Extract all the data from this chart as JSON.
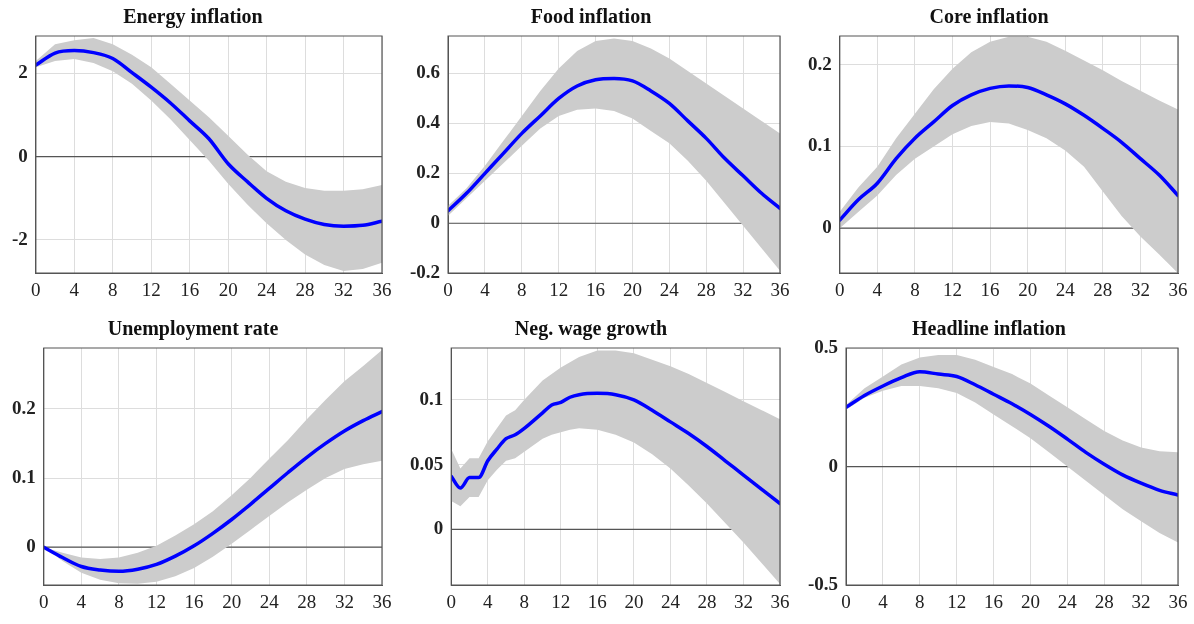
{
  "chart_data": [
    {
      "type": "line",
      "title": "Energy inflation",
      "x": [
        0,
        2,
        4,
        6,
        8,
        10,
        12,
        14,
        16,
        18,
        20,
        22,
        24,
        26,
        28,
        30,
        32,
        34,
        36
      ],
      "xlim": [
        0,
        36
      ],
      "xticks": [
        0,
        4,
        8,
        12,
        16,
        20,
        24,
        28,
        32,
        36
      ],
      "ylim": [
        -2.8,
        2.9
      ],
      "yticks": [
        -2,
        0,
        2
      ],
      "grid": true,
      "legend": false,
      "ref_lines": [
        {
          "axis": "y",
          "value": 0,
          "color": "#555555"
        }
      ],
      "series": [
        {
          "color": "#0000ff",
          "values": [
            2.2,
            2.49,
            2.55,
            2.5,
            2.36,
            2.02,
            1.67,
            1.29,
            0.86,
            0.43,
            -0.17,
            -0.6,
            -1.0,
            -1.3,
            -1.5,
            -1.63,
            -1.67,
            -1.65,
            -1.55
          ],
          "lower": [
            2.15,
            2.3,
            2.35,
            2.25,
            2.05,
            1.75,
            1.35,
            0.9,
            0.4,
            -0.1,
            -0.65,
            -1.15,
            -1.6,
            -2.0,
            -2.35,
            -2.6,
            -2.75,
            -2.7,
            -2.55
          ],
          "upper": [
            2.3,
            2.7,
            2.8,
            2.85,
            2.7,
            2.45,
            2.15,
            1.75,
            1.35,
            0.95,
            0.5,
            0.05,
            -0.35,
            -0.6,
            -0.75,
            -0.82,
            -0.82,
            -0.78,
            -0.68
          ]
        }
      ]
    },
    {
      "type": "line",
      "title": "Food inflation",
      "x": [
        0,
        2,
        4,
        6,
        8,
        10,
        12,
        14,
        16,
        18,
        20,
        22,
        24,
        26,
        28,
        30,
        32,
        34,
        36
      ],
      "xlim": [
        0,
        36
      ],
      "xticks": [
        0,
        4,
        8,
        12,
        16,
        20,
        24,
        28,
        32,
        36
      ],
      "ylim": [
        -0.2,
        0.75
      ],
      "yticks": [
        -0.2,
        0,
        0.2,
        0.4,
        0.6
      ],
      "grid": true,
      "legend": false,
      "ref_lines": [
        {
          "axis": "y",
          "value": 0,
          "color": "#555555"
        }
      ],
      "series": [
        {
          "color": "#0000ff",
          "values": [
            0.05,
            0.12,
            0.2,
            0.28,
            0.36,
            0.43,
            0.5,
            0.55,
            0.575,
            0.58,
            0.57,
            0.53,
            0.48,
            0.41,
            0.34,
            0.26,
            0.19,
            0.12,
            0.06
          ],
          "lower": [
            0.03,
            0.1,
            0.17,
            0.24,
            0.31,
            0.38,
            0.43,
            0.455,
            0.46,
            0.45,
            0.42,
            0.37,
            0.32,
            0.25,
            0.17,
            0.08,
            -0.01,
            -0.1,
            -0.19
          ],
          "upper": [
            0.07,
            0.14,
            0.23,
            0.33,
            0.43,
            0.53,
            0.62,
            0.69,
            0.73,
            0.74,
            0.73,
            0.7,
            0.66,
            0.61,
            0.56,
            0.51,
            0.46,
            0.41,
            0.36
          ]
        }
      ]
    },
    {
      "type": "line",
      "title": "Core inflation",
      "x": [
        0,
        2,
        4,
        6,
        8,
        10,
        12,
        14,
        16,
        18,
        20,
        22,
        24,
        26,
        28,
        30,
        32,
        34,
        36
      ],
      "xlim": [
        0,
        36
      ],
      "xticks": [
        0,
        4,
        8,
        12,
        16,
        20,
        24,
        28,
        32,
        36
      ],
      "ylim": [
        -0.055,
        0.235
      ],
      "yticks": [
        0,
        0.1,
        0.2
      ],
      "grid": true,
      "legend": false,
      "ref_lines": [
        {
          "axis": "y",
          "value": 0,
          "color": "#555555"
        }
      ],
      "series": [
        {
          "color": "#0000ff",
          "values": [
            0.01,
            0.035,
            0.055,
            0.085,
            0.11,
            0.13,
            0.15,
            0.163,
            0.171,
            0.174,
            0.172,
            0.163,
            0.152,
            0.138,
            0.122,
            0.105,
            0.085,
            0.065,
            0.04
          ],
          "lower": [
            0.0,
            0.02,
            0.04,
            0.065,
            0.085,
            0.1,
            0.115,
            0.125,
            0.13,
            0.128,
            0.12,
            0.11,
            0.095,
            0.075,
            0.045,
            0.015,
            -0.01,
            -0.032,
            -0.055
          ],
          "upper": [
            0.02,
            0.05,
            0.075,
            0.11,
            0.14,
            0.17,
            0.195,
            0.215,
            0.228,
            0.234,
            0.234,
            0.228,
            0.217,
            0.205,
            0.193,
            0.18,
            0.168,
            0.156,
            0.145
          ]
        }
      ]
    },
    {
      "type": "line",
      "title": "Unemployment rate",
      "x": [
        0,
        2,
        4,
        6,
        8,
        10,
        12,
        14,
        16,
        18,
        20,
        22,
        24,
        26,
        28,
        30,
        32,
        34,
        36
      ],
      "xlim": [
        0,
        36
      ],
      "xticks": [
        0,
        4,
        8,
        12,
        16,
        20,
        24,
        28,
        32,
        36
      ],
      "ylim": [
        -0.055,
        0.288
      ],
      "yticks": [
        0,
        0.1,
        0.2
      ],
      "grid": true,
      "legend": false,
      "ref_lines": [
        {
          "axis": "y",
          "value": 0,
          "color": "#555555"
        }
      ],
      "series": [
        {
          "color": "#0000ff",
          "values": [
            0,
            -0.015,
            -0.028,
            -0.033,
            -0.035,
            -0.032,
            -0.025,
            -0.013,
            0.002,
            0.02,
            0.04,
            0.062,
            0.085,
            0.108,
            0.13,
            0.15,
            0.168,
            0.183,
            0.196
          ],
          "lower": [
            0,
            -0.02,
            -0.037,
            -0.047,
            -0.052,
            -0.053,
            -0.05,
            -0.042,
            -0.03,
            -0.014,
            0.005,
            0.025,
            0.045,
            0.065,
            0.083,
            0.1,
            0.113,
            0.12,
            0.125
          ],
          "upper": [
            0,
            -0.008,
            -0.015,
            -0.017,
            -0.015,
            -0.008,
            0.002,
            0.017,
            0.033,
            0.052,
            0.075,
            0.1,
            0.128,
            0.155,
            0.185,
            0.213,
            0.24,
            0.262,
            0.285
          ]
        }
      ]
    },
    {
      "type": "line",
      "title": "Neg. wage growth",
      "xlim": [
        0,
        36
      ],
      "xticks": [
        0,
        4,
        8,
        12,
        16,
        20,
        24,
        28,
        32,
        36
      ],
      "ylim": [
        -0.043,
        0.14
      ],
      "yticks": [
        0,
        0.05,
        0.1
      ],
      "grid": true,
      "legend": false,
      "ref_lines": [
        {
          "axis": "y",
          "value": 0,
          "color": "#555555"
        }
      ],
      "series": [
        {
          "color": "#0000ff",
          "x": [
            0,
            1,
            2,
            3,
            4,
            5,
            6,
            7,
            8,
            10,
            11,
            12,
            13,
            14,
            16,
            18,
            20,
            22,
            24,
            26,
            28,
            30,
            32,
            34,
            36
          ],
          "values": [
            0.041,
            0.032,
            0.04,
            0.04,
            0.053,
            0.062,
            0.07,
            0.073,
            0.078,
            0.09,
            0.096,
            0.098,
            0.102,
            0.104,
            0.105,
            0.104,
            0.1,
            0.092,
            0.083,
            0.074,
            0.064,
            0.053,
            0.042,
            0.031,
            0.02
          ],
          "lower": [
            0.022,
            0.018,
            0.025,
            0.025,
            0.038,
            0.046,
            0.053,
            0.055,
            0.06,
            0.07,
            0.073,
            0.075,
            0.077,
            0.078,
            0.077,
            0.073,
            0.067,
            0.058,
            0.047,
            0.034,
            0.02,
            0.005,
            -0.01,
            -0.026,
            -0.042
          ],
          "upper": [
            0.062,
            0.047,
            0.055,
            0.055,
            0.068,
            0.078,
            0.088,
            0.092,
            0.1,
            0.115,
            0.12,
            0.125,
            0.129,
            0.133,
            0.138,
            0.138,
            0.136,
            0.131,
            0.126,
            0.12,
            0.113,
            0.106,
            0.099,
            0.092,
            0.085
          ]
        }
      ]
    },
    {
      "type": "line",
      "title": "Headline inflation",
      "x": [
        0,
        2,
        4,
        6,
        8,
        10,
        12,
        14,
        16,
        18,
        20,
        22,
        24,
        26,
        28,
        30,
        32,
        34,
        36
      ],
      "xlim": [
        0,
        36
      ],
      "xticks": [
        0,
        4,
        8,
        12,
        16,
        20,
        24,
        28,
        32,
        36
      ],
      "ylim": [
        -0.5,
        0.5
      ],
      "yticks": [
        -0.5,
        0,
        0.5
      ],
      "grid": true,
      "legend": false,
      "ref_lines": [
        {
          "axis": "y",
          "value": 0,
          "color": "#555555"
        }
      ],
      "series": [
        {
          "color": "#0000ff",
          "values": [
            0.25,
            0.3,
            0.34,
            0.375,
            0.4,
            0.39,
            0.38,
            0.345,
            0.305,
            0.265,
            0.22,
            0.17,
            0.116,
            0.06,
            0.01,
            -0.035,
            -0.07,
            -0.1,
            -0.12
          ],
          "lower": [
            0.24,
            0.29,
            0.32,
            0.34,
            0.34,
            0.33,
            0.31,
            0.27,
            0.22,
            0.17,
            0.12,
            0.06,
            0.0,
            -0.06,
            -0.12,
            -0.18,
            -0.23,
            -0.28,
            -0.32
          ],
          "upper": [
            0.26,
            0.33,
            0.38,
            0.43,
            0.46,
            0.47,
            0.47,
            0.45,
            0.42,
            0.39,
            0.35,
            0.3,
            0.25,
            0.2,
            0.15,
            0.11,
            0.08,
            0.065,
            0.06
          ]
        }
      ]
    }
  ]
}
